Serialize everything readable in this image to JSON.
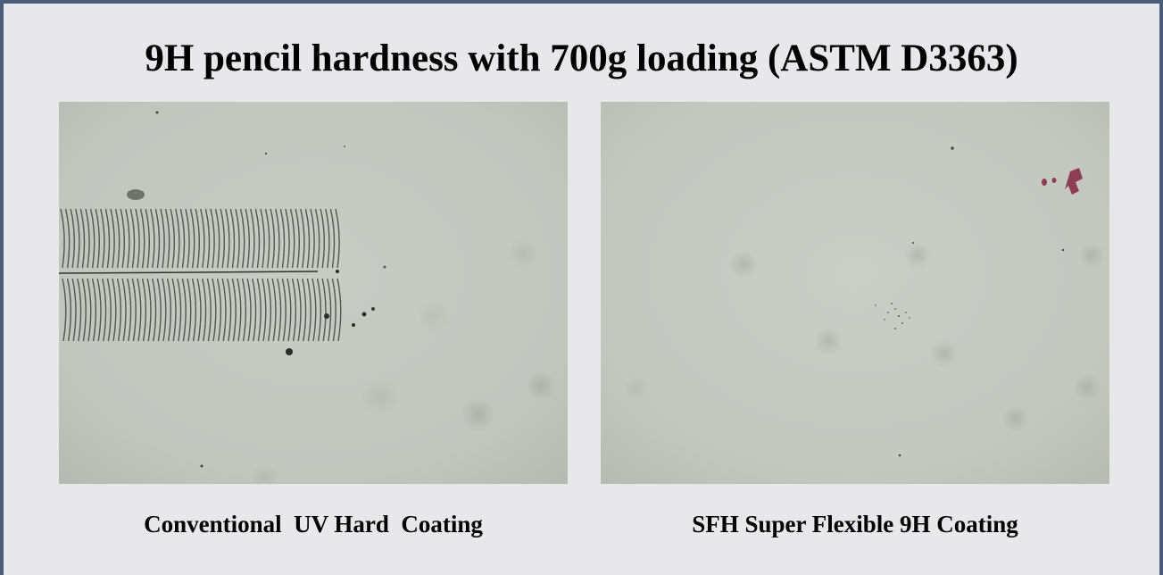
{
  "title": "9H pencil hardness with 700g loading (ASTM D3363)",
  "panels": [
    {
      "caption": "Conventional  UV Hard  Coating",
      "surface": "scratched"
    },
    {
      "caption": "SFH Super Flexible 9H Coating",
      "surface": "unscratched"
    }
  ],
  "colors": {
    "frame_border": "#4a5d78",
    "background": "#e8e8ea",
    "photo_surface": "#c4c8c0",
    "scratch": "#3a3c38",
    "residue": "#8a3c55"
  }
}
